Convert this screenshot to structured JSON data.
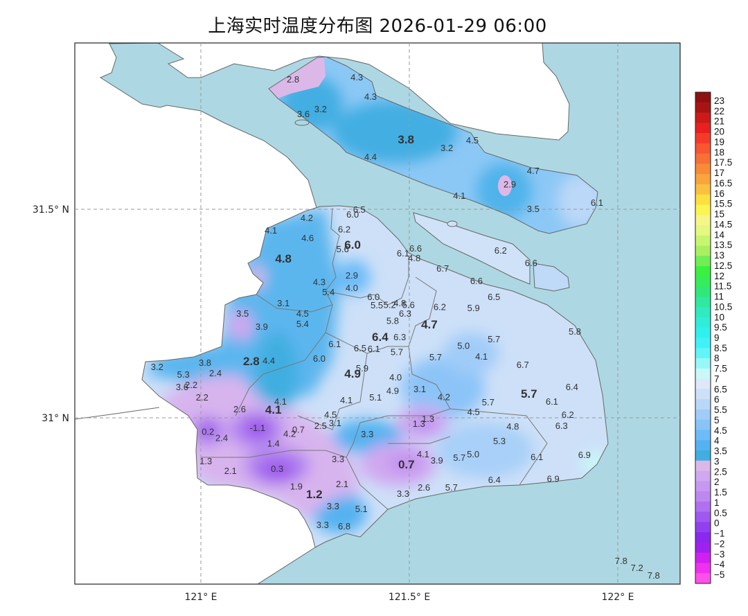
{
  "title": "上海实时温度分布图 2026-01-29 06:00",
  "axes": {
    "lat_labels": [
      {
        "value": 31.5,
        "label": "31.5° N"
      },
      {
        "value": 31.0,
        "label": "31° N"
      }
    ],
    "lon_labels": [
      {
        "value": 121.0,
        "label": "121° E"
      },
      {
        "value": 121.5,
        "label": "121.5° E"
      },
      {
        "value": 122.0,
        "label": "122° E"
      }
    ],
    "grid": true
  },
  "colors": {
    "sea": "#ADD8E3",
    "land": "#FFFFFF",
    "boundary": "#666666",
    "label": "#333333"
  },
  "colorbar": {
    "levels": [
      "23",
      "22",
      "21",
      "20",
      "19",
      "18",
      "17.5",
      "17",
      "16.5",
      "16",
      "15.5",
      "15",
      "14.5",
      "14",
      "13.5",
      "13",
      "12.5",
      "12",
      "11.5",
      "11",
      "10.5",
      "10",
      "9.5",
      "9",
      "8.5",
      "8",
      "7.5",
      "7",
      "6.5",
      "6",
      "5.5",
      "5",
      "4.5",
      "4",
      "3.5",
      "3",
      "2.5",
      "2",
      "1.5",
      "1",
      "0.5",
      "0",
      "−1",
      "−2",
      "−3",
      "−4",
      "−5"
    ],
    "colors": [
      "#8E1010",
      "#A81414",
      "#CC1A1A",
      "#E82020",
      "#F53A2A",
      "#F85530",
      "#F87035",
      "#F88A38",
      "#F8A53C",
      "#FAC040",
      "#FBE040",
      "#FAF550",
      "#F5F58A",
      "#E5F880",
      "#C8F570",
      "#A8F060",
      "#70EE55",
      "#3AF040",
      "#35EC5A",
      "#30E878",
      "#30E8A0",
      "#30EAC0",
      "#30EDD8",
      "#30F0EE",
      "#40F2F8",
      "#60F5F8",
      "#98F8F8",
      "#C8F8F8",
      "#DDE8F8",
      "#CDE0F8",
      "#B8D8F8",
      "#A0CCF8",
      "#88C4F8",
      "#6CBCF8",
      "#55B2F0",
      "#40AEE0",
      "#DCB8E8",
      "#D0A8F0",
      "#C698F0",
      "#BC88F0",
      "#B070F0",
      "#A058F0",
      "#9040F0",
      "#8A28F0",
      "#A020F0",
      "#D020F0",
      "#F030F0",
      "#FF50E8"
    ]
  },
  "stations": [
    [
      121.221,
      31.812,
      "2.8",
      0
    ],
    [
      121.374,
      31.817,
      "4.3",
      0
    ],
    [
      121.407,
      31.771,
      "4.3",
      0
    ],
    [
      121.287,
      31.741,
      "3.2",
      0
    ],
    [
      121.246,
      31.729,
      "3.6",
      0
    ],
    [
      121.492,
      31.668,
      "3.8",
      1
    ],
    [
      121.59,
      31.648,
      "3.2",
      0
    ],
    [
      121.651,
      31.666,
      "4.5",
      0
    ],
    [
      121.407,
      31.626,
      "4.4",
      0
    ],
    [
      121.797,
      31.593,
      "4.7",
      0
    ],
    [
      121.741,
      31.561,
      "2.9",
      0
    ],
    [
      121.62,
      31.533,
      "4.1",
      0
    ],
    [
      121.797,
      31.502,
      "3.5",
      0
    ],
    [
      121.95,
      31.517,
      "6.1",
      0
    ],
    [
      121.38,
      31.5,
      "6.5",
      0
    ],
    [
      121.364,
      31.488,
      "6.0",
      0
    ],
    [
      121.168,
      31.45,
      "4.1",
      0
    ],
    [
      121.254,
      31.48,
      "4.2",
      0
    ],
    [
      121.344,
      31.453,
      "6.2",
      0
    ],
    [
      121.256,
      31.432,
      "4.6",
      0
    ],
    [
      121.364,
      31.415,
      "6.0",
      1
    ],
    [
      121.34,
      31.405,
      "5.6",
      0
    ],
    [
      121.485,
      31.395,
      "6.1",
      0
    ],
    [
      121.515,
      31.407,
      "6.6",
      0
    ],
    [
      121.512,
      31.384,
      "4.8",
      0
    ],
    [
      121.719,
      31.402,
      "6.2",
      0
    ],
    [
      121.198,
      31.382,
      "4.8",
      1
    ],
    [
      121.792,
      31.372,
      "6.6",
      0
    ],
    [
      121.58,
      31.359,
      "6.7",
      0
    ],
    [
      121.362,
      31.342,
      "2.9",
      0
    ],
    [
      121.284,
      31.326,
      "4.3",
      0
    ],
    [
      121.362,
      31.312,
      "4.0",
      0
    ],
    [
      121.306,
      31.302,
      "5.4",
      0
    ],
    [
      121.661,
      31.329,
      "6.6",
      0
    ],
    [
      121.414,
      31.291,
      "6.0",
      0
    ],
    [
      121.703,
      31.291,
      "6.5",
      0
    ],
    [
      121.198,
      31.276,
      "3.1",
      0
    ],
    [
      121.422,
      31.271,
      "5.5",
      0
    ],
    [
      121.453,
      31.272,
      "5.2",
      0
    ],
    [
      121.477,
      31.276,
      "4.8",
      0
    ],
    [
      121.498,
      31.272,
      "5.6",
      0
    ],
    [
      121.573,
      31.267,
      "6.2",
      0
    ],
    [
      121.654,
      31.264,
      "5.9",
      0
    ],
    [
      121.1,
      31.251,
      "3.5",
      0
    ],
    [
      121.244,
      31.251,
      "4.5",
      0
    ],
    [
      121.49,
      31.251,
      "6.3",
      0
    ],
    [
      121.46,
      31.233,
      "5.8",
      0
    ],
    [
      121.548,
      31.224,
      "4.7",
      1
    ],
    [
      121.244,
      31.226,
      "5.4",
      0
    ],
    [
      121.146,
      31.219,
      "3.9",
      0
    ],
    [
      121.897,
      31.208,
      "5.8",
      0
    ],
    [
      121.43,
      31.194,
      "6.4",
      1
    ],
    [
      121.477,
      31.194,
      "6.3",
      0
    ],
    [
      121.703,
      31.189,
      "5.7",
      0
    ],
    [
      121.321,
      31.178,
      "6.1",
      0
    ],
    [
      121.382,
      31.168,
      "6.5",
      0
    ],
    [
      121.415,
      31.166,
      "6.1",
      0
    ],
    [
      121.63,
      31.174,
      "5.0",
      0
    ],
    [
      121.47,
      31.159,
      "5.7",
      0
    ],
    [
      121.284,
      31.143,
      "6.0",
      0
    ],
    [
      121.673,
      31.148,
      "4.1",
      0
    ],
    [
      120.895,
      31.123,
      "3.2",
      0
    ],
    [
      121.01,
      31.133,
      "3.8",
      0
    ],
    [
      121.121,
      31.136,
      "2.8",
      1
    ],
    [
      121.163,
      31.138,
      "4.4",
      0
    ],
    [
      121.563,
      31.146,
      "5.7",
      0
    ],
    [
      121.772,
      31.128,
      "6.7",
      0
    ],
    [
      120.958,
      31.105,
      "5.3",
      0
    ],
    [
      121.035,
      31.108,
      "2.4",
      0
    ],
    [
      121.387,
      31.12,
      "5.9",
      0
    ],
    [
      121.364,
      31.106,
      "4.9",
      1
    ],
    [
      121.467,
      31.098,
      "4.0",
      0
    ],
    [
      120.955,
      31.075,
      "3.6",
      0
    ],
    [
      120.977,
      31.08,
      "2.2",
      0
    ],
    [
      121.525,
      31.07,
      "3.1",
      0
    ],
    [
      121.46,
      31.066,
      "4.9",
      0
    ],
    [
      121.89,
      31.075,
      "6.4",
      0
    ],
    [
      121.003,
      31.05,
      "2.2",
      0
    ],
    [
      121.419,
      31.05,
      "5.1",
      0
    ],
    [
      121.349,
      31.043,
      "4.1",
      0
    ],
    [
      121.583,
      31.051,
      "4.2",
      0
    ],
    [
      121.787,
      31.058,
      "5.7",
      1
    ],
    [
      121.191,
      31.04,
      "4.1",
      0
    ],
    [
      121.689,
      31.038,
      "5.7",
      0
    ],
    [
      121.842,
      31.04,
      "6.1",
      0
    ],
    [
      121.093,
      31.022,
      "2.6",
      0
    ],
    [
      121.174,
      31.02,
      "4.1",
      1
    ],
    [
      121.654,
      31.015,
      "4.5",
      0
    ],
    [
      121.88,
      31.008,
      "6.2",
      0
    ],
    [
      121.311,
      31.008,
      "4.5",
      0
    ],
    [
      121.545,
      30.998,
      "1.3",
      0
    ],
    [
      121.523,
      30.987,
      "1.3",
      0
    ],
    [
      121.322,
      30.988,
      "3.1",
      0
    ],
    [
      121.287,
      30.982,
      "2.5",
      0
    ],
    [
      121.865,
      30.982,
      "6.3",
      0
    ],
    [
      121.748,
      30.98,
      "4.8",
      0
    ],
    [
      121.136,
      30.977,
      "-1.1",
      0
    ],
    [
      121.234,
      30.973,
      "0.7",
      0
    ],
    [
      121.213,
      30.963,
      "4.2",
      0
    ],
    [
      121.017,
      30.968,
      "0.2",
      0
    ],
    [
      121.05,
      30.953,
      "2.4",
      0
    ],
    [
      121.399,
      30.962,
      "3.3",
      0
    ],
    [
      121.716,
      30.945,
      "5.3",
      0
    ],
    [
      121.174,
      30.939,
      "1.4",
      0
    ],
    [
      121.533,
      30.914,
      "4.1",
      0
    ],
    [
      121.566,
      30.899,
      "3.9",
      0
    ],
    [
      121.62,
      30.905,
      "5.7",
      0
    ],
    [
      121.653,
      30.914,
      "5.0",
      0
    ],
    [
      121.806,
      30.907,
      "6.1",
      0
    ],
    [
      121.92,
      30.912,
      "6.9",
      0
    ],
    [
      121.012,
      30.897,
      "1.3",
      0
    ],
    [
      121.329,
      30.902,
      "3.3",
      0
    ],
    [
      121.493,
      30.889,
      "0.7",
      1
    ],
    [
      121.183,
      30.879,
      "0.3",
      0
    ],
    [
      121.071,
      30.874,
      "2.1",
      0
    ],
    [
      121.704,
      30.852,
      "6.4",
      0
    ],
    [
      121.845,
      30.855,
      "6.9",
      0
    ],
    [
      121.229,
      30.836,
      "1.9",
      0
    ],
    [
      121.339,
      30.842,
      "2.1",
      0
    ],
    [
      121.535,
      30.834,
      "2.6",
      0
    ],
    [
      121.601,
      30.834,
      "5.7",
      0
    ],
    [
      121.272,
      30.817,
      "1.2",
      1
    ],
    [
      121.485,
      30.819,
      "3.3",
      0
    ],
    [
      121.317,
      30.789,
      "3.3",
      0
    ],
    [
      121.385,
      30.782,
      "5.1",
      0
    ],
    [
      121.292,
      30.744,
      "3.3",
      0
    ],
    [
      121.344,
      30.741,
      "6.8",
      0
    ],
    [
      122.008,
      30.658,
      "7.8",
      0
    ],
    [
      122.046,
      30.641,
      "7.2",
      0
    ],
    [
      122.086,
      30.623,
      "7.8",
      0
    ]
  ]
}
